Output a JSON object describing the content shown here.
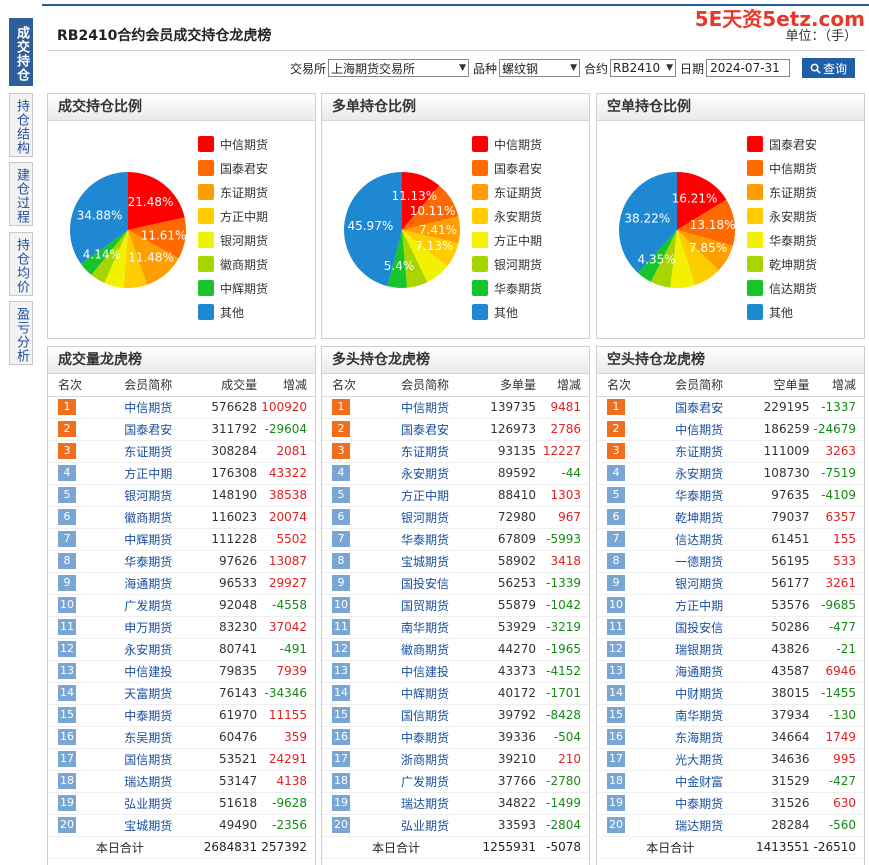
{
  "watermark": "5E天资5etz.com",
  "page_title": "RB2410合约会员成交持仓龙虎榜",
  "unit_label": "单位：（手）",
  "side_tabs": [
    "成交持仓",
    "持仓结构",
    "建仓过程",
    "持仓均价",
    "盈亏分析"
  ],
  "filters": {
    "exchange_label": "交易所",
    "exchange_value": "上海期货交易所",
    "variety_label": "品种",
    "variety_value": "螺纹钢",
    "contract_label": "合约",
    "contract_value": "RB2410",
    "date_label": "日期",
    "date_value": "2024-07-31",
    "query_label": "查询"
  },
  "colors": {
    "slices": [
      "#ff0000",
      "#ff6a00",
      "#ff9e00",
      "#ffcc00",
      "#f2f200",
      "#a8d400",
      "#16c52b",
      "#1e88d2"
    ]
  },
  "pies": [
    {
      "title": "成交持仓比例",
      "chart_data": {
        "type": "pie",
        "labels": [
          "中信期货",
          "国泰君安",
          "东证期货",
          "方正中期",
          "银河期货",
          "徽商期货",
          "中辉期货",
          "其他"
        ],
        "values": [
          21.48,
          11.61,
          11.48,
          6.5,
          5.5,
          4.2,
          4.14,
          34.88
        ],
        "shown_labels": [
          "21.48%",
          "11.61%",
          "11.48%",
          "",
          "",
          "",
          "4.14%",
          "34.88%"
        ]
      }
    },
    {
      "title": "多单持仓比例",
      "chart_data": {
        "type": "pie",
        "labels": [
          "中信期货",
          "国泰君安",
          "东证期货",
          "永安期货",
          "方正中期",
          "银河期货",
          "华泰期货",
          "其他"
        ],
        "values": [
          11.13,
          10.11,
          7.41,
          7.13,
          7.0,
          5.8,
          5.4,
          45.97
        ],
        "shown_labels": [
          "11.13%",
          "10.11%",
          "7.41%",
          "7.13%",
          "",
          "",
          "5.4%",
          "45.97%"
        ]
      }
    },
    {
      "title": "空单持仓比例",
      "chart_data": {
        "type": "pie",
        "labels": [
          "国泰君安",
          "中信期货",
          "东证期货",
          "永安期货",
          "华泰期货",
          "乾坤期货",
          "信达期货",
          "其他"
        ],
        "values": [
          16.21,
          13.18,
          7.85,
          7.69,
          6.9,
          5.6,
          4.35,
          38.22
        ],
        "shown_labels": [
          "16.21%",
          "13.18%",
          "7.85%",
          "",
          "",
          "",
          "4.35%",
          "38.22%"
        ]
      }
    }
  ],
  "tables": [
    {
      "title": "成交量龙虎榜",
      "headers": [
        "名次",
        "会员简称",
        "成交量",
        "增减"
      ],
      "rows": [
        [
          "1",
          "中信期货",
          "576628",
          "100920"
        ],
        [
          "2",
          "国泰君安",
          "311792",
          "-29604"
        ],
        [
          "3",
          "东证期货",
          "308284",
          "2081"
        ],
        [
          "4",
          "方正中期",
          "176308",
          "43322"
        ],
        [
          "5",
          "银河期货",
          "148190",
          "38538"
        ],
        [
          "6",
          "徽商期货",
          "116023",
          "20074"
        ],
        [
          "7",
          "中辉期货",
          "111228",
          "5502"
        ],
        [
          "8",
          "华泰期货",
          "97626",
          "13087"
        ],
        [
          "9",
          "海通期货",
          "96533",
          "29927"
        ],
        [
          "10",
          "广发期货",
          "92048",
          "-4558"
        ],
        [
          "11",
          "申万期货",
          "83230",
          "37042"
        ],
        [
          "12",
          "永安期货",
          "80741",
          "-491"
        ],
        [
          "13",
          "中信建投",
          "79835",
          "7939"
        ],
        [
          "14",
          "天富期货",
          "76143",
          "-34346"
        ],
        [
          "15",
          "中泰期货",
          "61970",
          "11155"
        ],
        [
          "16",
          "东吴期货",
          "60476",
          "359"
        ],
        [
          "17",
          "国信期货",
          "53521",
          "24291"
        ],
        [
          "18",
          "瑞达期货",
          "53147",
          "4138"
        ],
        [
          "19",
          "弘业期货",
          "51618",
          "-9628"
        ],
        [
          "20",
          "宝城期货",
          "49490",
          "-2356"
        ]
      ],
      "total": [
        "本日合计",
        "2684831",
        "257392"
      ]
    },
    {
      "title": "多头持仓龙虎榜",
      "headers": [
        "名次",
        "会员简称",
        "多单量",
        "增减"
      ],
      "rows": [
        [
          "1",
          "中信期货",
          "139735",
          "9481"
        ],
        [
          "2",
          "国泰君安",
          "126973",
          "2786"
        ],
        [
          "3",
          "东证期货",
          "93135",
          "12227"
        ],
        [
          "4",
          "永安期货",
          "89592",
          "-44"
        ],
        [
          "5",
          "方正中期",
          "88410",
          "1303"
        ],
        [
          "6",
          "银河期货",
          "72980",
          "967"
        ],
        [
          "7",
          "华泰期货",
          "67809",
          "-5993"
        ],
        [
          "8",
          "宝城期货",
          "58902",
          "3418"
        ],
        [
          "9",
          "国投安信",
          "56253",
          "-1339"
        ],
        [
          "10",
          "国贸期货",
          "55879",
          "-1042"
        ],
        [
          "11",
          "南华期货",
          "53929",
          "-3219"
        ],
        [
          "12",
          "徽商期货",
          "44270",
          "-1965"
        ],
        [
          "13",
          "中信建投",
          "43373",
          "-4152"
        ],
        [
          "14",
          "中辉期货",
          "40172",
          "-1701"
        ],
        [
          "15",
          "国信期货",
          "39792",
          "-8428"
        ],
        [
          "16",
          "中泰期货",
          "39336",
          "-504"
        ],
        [
          "17",
          "浙商期货",
          "39210",
          "210"
        ],
        [
          "18",
          "广发期货",
          "37766",
          "-2780"
        ],
        [
          "19",
          "瑞达期货",
          "34822",
          "-1499"
        ],
        [
          "20",
          "弘业期货",
          "33593",
          "-2804"
        ]
      ],
      "total": [
        "本日合计",
        "1255931",
        "-5078"
      ]
    },
    {
      "title": "空头持仓龙虎榜",
      "headers": [
        "名次",
        "会员简称",
        "空单量",
        "增减"
      ],
      "rows": [
        [
          "1",
          "国泰君安",
          "229195",
          "-1337"
        ],
        [
          "2",
          "中信期货",
          "186259",
          "-24679"
        ],
        [
          "3",
          "东证期货",
          "111009",
          "3263"
        ],
        [
          "4",
          "永安期货",
          "108730",
          "-7519"
        ],
        [
          "5",
          "华泰期货",
          "97635",
          "-4109"
        ],
        [
          "6",
          "乾坤期货",
          "79037",
          "6357"
        ],
        [
          "7",
          "信达期货",
          "61451",
          "155"
        ],
        [
          "8",
          "一德期货",
          "56195",
          "533"
        ],
        [
          "9",
          "银河期货",
          "56177",
          "3261"
        ],
        [
          "10",
          "方正中期",
          "53576",
          "-9685"
        ],
        [
          "11",
          "国投安信",
          "50286",
          "-477"
        ],
        [
          "12",
          "瑞银期货",
          "43826",
          "-21"
        ],
        [
          "13",
          "海通期货",
          "43587",
          "6946"
        ],
        [
          "14",
          "中财期货",
          "38015",
          "-1455"
        ],
        [
          "15",
          "南华期货",
          "37934",
          "-130"
        ],
        [
          "16",
          "东海期货",
          "34664",
          "1749"
        ],
        [
          "17",
          "光大期货",
          "34636",
          "995"
        ],
        [
          "18",
          "中金财富",
          "31529",
          "-427"
        ],
        [
          "19",
          "中泰期货",
          "31526",
          "630"
        ],
        [
          "20",
          "瑞达期货",
          "28284",
          "-560"
        ]
      ],
      "total": [
        "本日合计",
        "1413551",
        "-26510"
      ]
    }
  ]
}
